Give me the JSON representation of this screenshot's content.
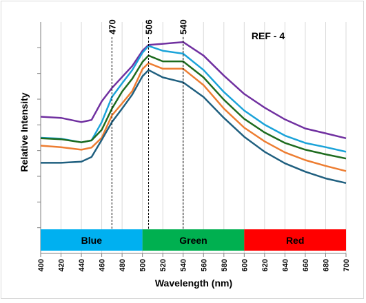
{
  "chart_data": {
    "type": "line",
    "title": "REF - 4",
    "xlabel": "Wavelength (nm)",
    "ylabel": "Relative Intensity",
    "xlim": [
      400,
      700
    ],
    "x_ticks": [
      400,
      420,
      440,
      460,
      480,
      500,
      520,
      540,
      560,
      580,
      600,
      620,
      640,
      660,
      680,
      700
    ],
    "y_tick_count": 8,
    "grid": "vertical",
    "reference_lines": [
      {
        "x": 470,
        "label": "470"
      },
      {
        "x": 506,
        "label": "506"
      },
      {
        "x": 540,
        "label": "540"
      }
    ],
    "bands": [
      {
        "label": "Blue",
        "from": 400,
        "to": 500,
        "color": "#00b0f0"
      },
      {
        "label": "Green",
        "from": 500,
        "to": 600,
        "color": "#00b050"
      },
      {
        "label": "Red",
        "from": 600,
        "to": 700,
        "color": "#ff0000"
      }
    ],
    "series": [
      {
        "color": "#7030a0",
        "x": [
          400,
          420,
          440,
          450,
          460,
          470,
          480,
          490,
          500,
          506,
          520,
          540,
          560,
          580,
          600,
          620,
          640,
          660,
          680,
          700
        ],
        "y": [
          7.09,
          7.03,
          6.81,
          6.92,
          7.89,
          8.58,
          9.15,
          9.72,
          10.51,
          10.81,
          10.87,
          10.96,
          10.26,
          9.22,
          8.27,
          7.56,
          6.95,
          6.48,
          6.23,
          5.97
        ]
      },
      {
        "color": "#1aa3d9",
        "x": [
          400,
          420,
          440,
          450,
          460,
          470,
          480,
          490,
          500,
          506,
          520,
          540,
          560,
          580,
          600,
          620,
          640,
          660,
          680,
          700
        ],
        "y": [
          6.0,
          5.95,
          5.76,
          5.86,
          6.81,
          8.11,
          8.82,
          9.51,
          10.41,
          10.76,
          10.51,
          10.36,
          9.51,
          8.37,
          7.41,
          6.68,
          6.11,
          5.73,
          5.51,
          5.27
        ]
      },
      {
        "color": "#1e6b1e",
        "x": [
          400,
          420,
          440,
          450,
          460,
          470,
          480,
          490,
          500,
          506,
          520,
          540,
          560,
          580,
          600,
          620,
          640,
          660,
          680,
          700
        ],
        "y": [
          5.97,
          5.92,
          5.76,
          5.86,
          6.41,
          7.51,
          8.39,
          9.06,
          9.93,
          10.26,
          9.96,
          9.96,
          9.13,
          7.97,
          6.98,
          6.27,
          5.73,
          5.38,
          5.14,
          4.92
        ]
      },
      {
        "color": "#ed7d31",
        "x": [
          400,
          420,
          440,
          450,
          460,
          470,
          480,
          490,
          500,
          506,
          520,
          540,
          560,
          580,
          600,
          620,
          640,
          660,
          680,
          700
        ],
        "y": [
          5.59,
          5.51,
          5.38,
          5.49,
          6.0,
          7.16,
          7.78,
          8.42,
          9.56,
          9.87,
          9.58,
          9.58,
          8.73,
          7.51,
          6.52,
          5.81,
          5.24,
          4.84,
          4.54,
          4.27
        ]
      },
      {
        "color": "#1f5f7f",
        "x": [
          400,
          420,
          440,
          450,
          460,
          470,
          480,
          490,
          500,
          506,
          520,
          540,
          560,
          580,
          600,
          620,
          640,
          660,
          680,
          700
        ],
        "y": [
          4.7,
          4.7,
          4.76,
          5.0,
          5.89,
          6.81,
          7.51,
          8.24,
          9.19,
          9.51,
          9.13,
          8.87,
          8.11,
          7.03,
          6.05,
          5.27,
          4.67,
          4.24,
          3.89,
          3.65
        ]
      }
    ]
  }
}
